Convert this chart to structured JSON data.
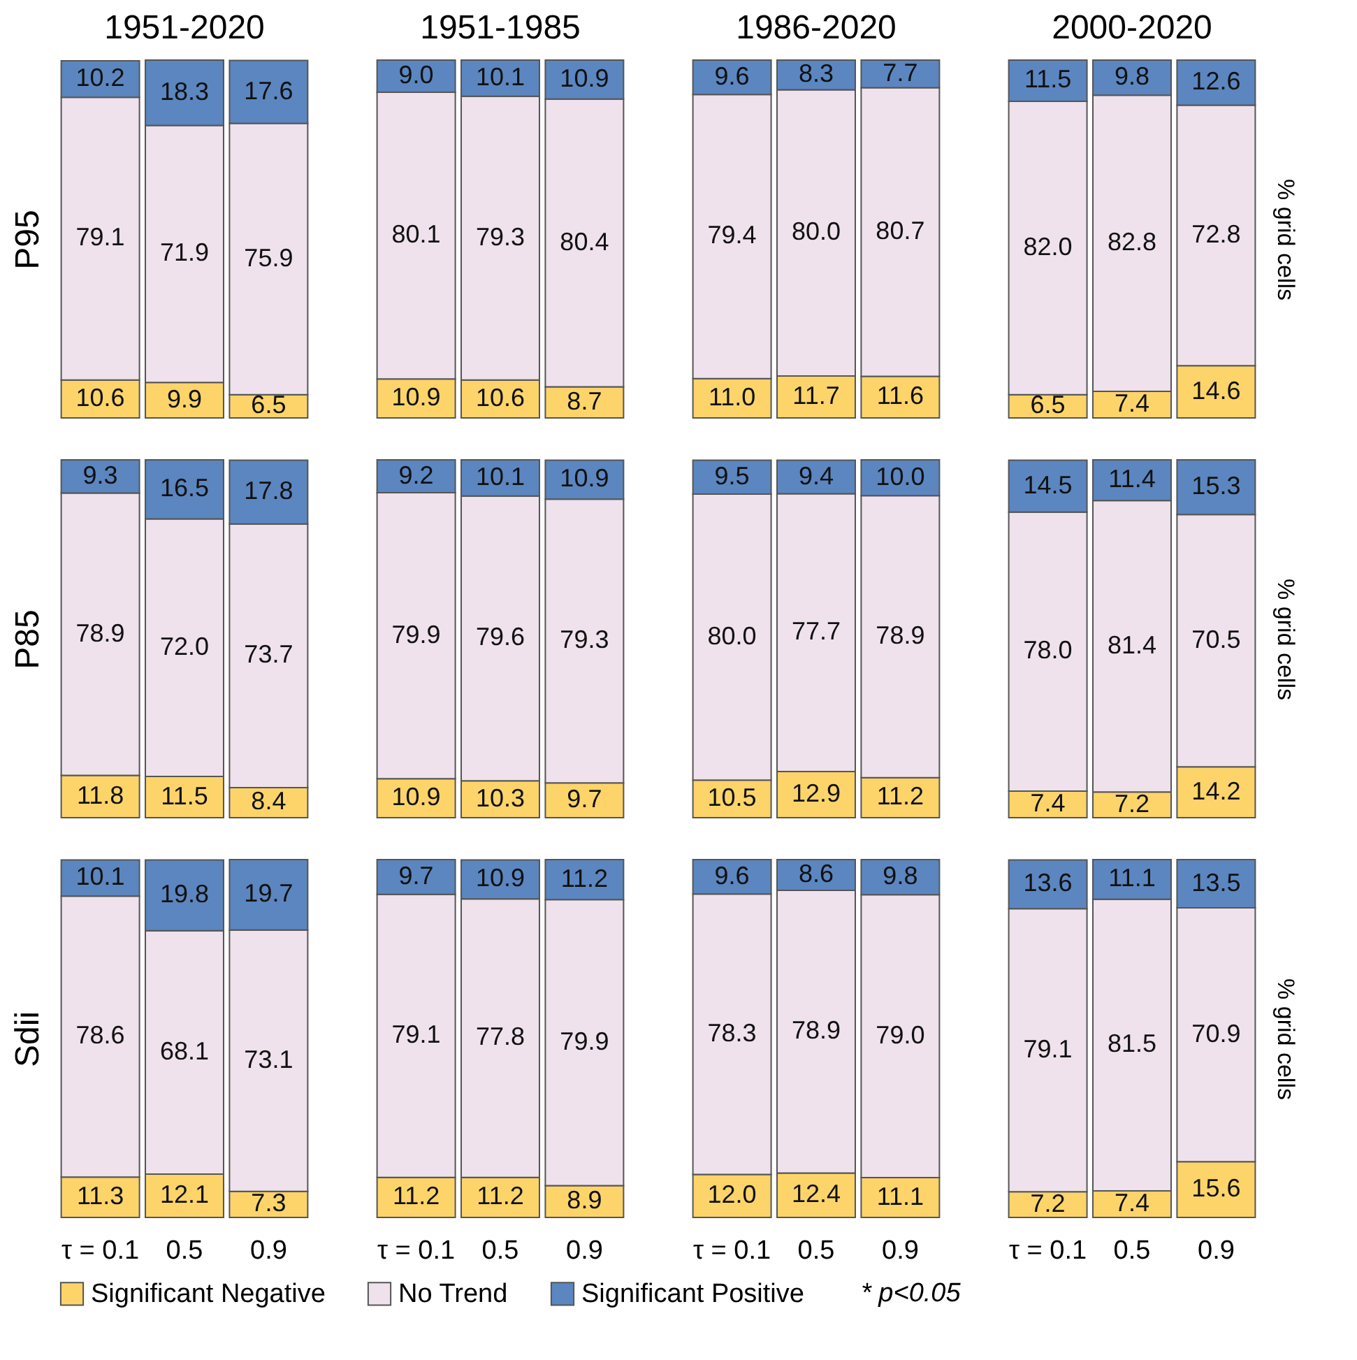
{
  "chart_data": [
    {
      "type": "bar",
      "stacked": true,
      "legend": "bottom",
      "tick_labels": false,
      "title": "1951-2020",
      "ylabel": "P95",
      "categories": [
        "τ = 0.1",
        "0.5",
        "0.9"
      ],
      "series": [
        {
          "name": "Significant Negative",
          "color": "#fcd46a",
          "values": [
            10.6,
            9.9,
            6.5
          ],
          "value_labels": [
            "10.6",
            "9.9",
            "6.5"
          ]
        },
        {
          "name": "No Trend",
          "color": "#efe2ec",
          "values": [
            79.1,
            71.9,
            75.9
          ],
          "value_labels": [
            "79.1",
            "71.9",
            "75.9"
          ]
        },
        {
          "name": "Significant Positive",
          "color": "#5b86c0",
          "values": [
            10.2,
            18.3,
            17.6
          ],
          "value_labels": [
            "10.2",
            "18.3",
            "17.6"
          ]
        }
      ]
    },
    {
      "type": "bar",
      "stacked": true,
      "legend": "bottom",
      "tick_labels": false,
      "title": "1951-1985",
      "categories": [
        "τ = 0.1",
        "0.5",
        "0.9"
      ],
      "series": [
        {
          "name": "Significant Negative",
          "color": "#fcd46a",
          "values": [
            10.9,
            10.6,
            8.7
          ],
          "value_labels": [
            "10.9",
            "10.6",
            "8.7"
          ]
        },
        {
          "name": "No Trend",
          "color": "#efe2ec",
          "values": [
            80.1,
            79.3,
            80.4
          ],
          "value_labels": [
            "80.1",
            "79.3",
            "80.4"
          ]
        },
        {
          "name": "Significant Positive",
          "color": "#5b86c0",
          "values": [
            9.0,
            10.1,
            10.9
          ],
          "value_labels": [
            "9.0",
            "10.1",
            "10.9"
          ]
        }
      ]
    },
    {
      "type": "bar",
      "stacked": true,
      "legend": "bottom",
      "tick_labels": false,
      "title": "1986-2020",
      "categories": [
        "τ = 0.1",
        "0.5",
        "0.9"
      ],
      "series": [
        {
          "name": "Significant Negative",
          "color": "#fcd46a",
          "values": [
            11.0,
            11.7,
            11.6
          ],
          "value_labels": [
            "11.0",
            "11.7",
            "11.6"
          ]
        },
        {
          "name": "No Trend",
          "color": "#efe2ec",
          "values": [
            79.4,
            80.0,
            80.7
          ],
          "value_labels": [
            "79.4",
            "80.0",
            "80.7"
          ]
        },
        {
          "name": "Significant Positive",
          "color": "#5b86c0",
          "values": [
            9.6,
            8.3,
            7.7
          ],
          "value_labels": [
            "9.6",
            "8.3",
            "7.7"
          ]
        }
      ]
    },
    {
      "type": "bar",
      "stacked": true,
      "legend": "bottom",
      "tick_labels": false,
      "title": "2000-2020",
      "y2label": "% grid cells",
      "categories": [
        "τ = 0.1",
        "0.5",
        "0.9"
      ],
      "series": [
        {
          "name": "Significant Negative",
          "color": "#fcd46a",
          "values": [
            6.5,
            7.4,
            14.6
          ],
          "value_labels": [
            "6.5",
            "7.4",
            "14.6"
          ]
        },
        {
          "name": "No Trend",
          "color": "#efe2ec",
          "values": [
            82.0,
            82.8,
            72.8
          ],
          "value_labels": [
            "82.0",
            "82.8",
            "72.8"
          ]
        },
        {
          "name": "Significant Positive",
          "color": "#5b86c0",
          "values": [
            11.5,
            9.8,
            12.6
          ],
          "value_labels": [
            "11.5",
            "9.8",
            "12.6"
          ]
        }
      ]
    },
    {
      "type": "bar",
      "stacked": true,
      "legend": "bottom",
      "tick_labels": false,
      "ylabel": "P85",
      "categories": [
        "τ = 0.1",
        "0.5",
        "0.9"
      ],
      "series": [
        {
          "name": "Significant Negative",
          "color": "#fcd46a",
          "values": [
            11.8,
            11.5,
            8.4
          ],
          "value_labels": [
            "11.8",
            "11.5",
            "8.4"
          ]
        },
        {
          "name": "No Trend",
          "color": "#efe2ec",
          "values": [
            78.9,
            72.0,
            73.7
          ],
          "value_labels": [
            "78.9",
            "72.0",
            "73.7"
          ]
        },
        {
          "name": "Significant Positive",
          "color": "#5b86c0",
          "values": [
            9.3,
            16.5,
            17.8
          ],
          "value_labels": [
            "9.3",
            "16.5",
            "17.8"
          ]
        }
      ]
    },
    {
      "type": "bar",
      "stacked": true,
      "legend": "bottom",
      "tick_labels": false,
      "categories": [
        "τ = 0.1",
        "0.5",
        "0.9"
      ],
      "series": [
        {
          "name": "Significant Negative",
          "color": "#fcd46a",
          "values": [
            10.9,
            10.3,
            9.7
          ],
          "value_labels": [
            "10.9",
            "10.3",
            "9.7"
          ]
        },
        {
          "name": "No Trend",
          "color": "#efe2ec",
          "values": [
            79.9,
            79.6,
            79.3
          ],
          "value_labels": [
            "79.9",
            "79.6",
            "79.3"
          ]
        },
        {
          "name": "Significant Positive",
          "color": "#5b86c0",
          "values": [
            9.2,
            10.1,
            10.9
          ],
          "value_labels": [
            "9.2",
            "10.1",
            "10.9"
          ]
        }
      ]
    },
    {
      "type": "bar",
      "stacked": true,
      "legend": "bottom",
      "tick_labels": false,
      "categories": [
        "τ = 0.1",
        "0.5",
        "0.9"
      ],
      "series": [
        {
          "name": "Significant Negative",
          "color": "#fcd46a",
          "values": [
            10.5,
            12.9,
            11.2
          ],
          "value_labels": [
            "10.5",
            "12.9",
            "11.2"
          ]
        },
        {
          "name": "No Trend",
          "color": "#efe2ec",
          "values": [
            80.0,
            77.7,
            78.9
          ],
          "value_labels": [
            "80.0",
            "77.7",
            "78.9"
          ]
        },
        {
          "name": "Significant Positive",
          "color": "#5b86c0",
          "values": [
            9.5,
            9.4,
            10.0
          ],
          "value_labels": [
            "9.5",
            "9.4",
            "10.0"
          ]
        }
      ]
    },
    {
      "type": "bar",
      "stacked": true,
      "legend": "bottom",
      "tick_labels": false,
      "y2label": "% grid cells",
      "categories": [
        "τ = 0.1",
        "0.5",
        "0.9"
      ],
      "series": [
        {
          "name": "Significant Negative",
          "color": "#fcd46a",
          "values": [
            7.4,
            7.2,
            14.2
          ],
          "value_labels": [
            "7.4",
            "7.2",
            "14.2"
          ]
        },
        {
          "name": "No Trend",
          "color": "#efe2ec",
          "values": [
            78.0,
            81.4,
            70.5
          ],
          "value_labels": [
            "78.0",
            "81.4",
            "70.5"
          ]
        },
        {
          "name": "Significant Positive",
          "color": "#5b86c0",
          "values": [
            14.5,
            11.4,
            15.3
          ],
          "value_labels": [
            "14.5",
            "11.4",
            "15.3"
          ]
        }
      ]
    },
    {
      "type": "bar",
      "stacked": true,
      "legend": "bottom",
      "tick_labels": "x",
      "ylabel": "Sdii",
      "categories": [
        "τ = 0.1",
        "0.5",
        "0.9"
      ],
      "series": [
        {
          "name": "Significant Negative",
          "color": "#fcd46a",
          "values": [
            11.3,
            12.1,
            7.3
          ],
          "value_labels": [
            "11.3",
            "12.1",
            "7.3"
          ]
        },
        {
          "name": "No Trend",
          "color": "#efe2ec",
          "values": [
            78.6,
            68.1,
            73.1
          ],
          "value_labels": [
            "78.6",
            "68.1",
            "73.1"
          ]
        },
        {
          "name": "Significant Positive",
          "color": "#5b86c0",
          "values": [
            10.1,
            19.8,
            19.7
          ],
          "value_labels": [
            "10.1",
            "19.8",
            "19.7"
          ]
        }
      ]
    },
    {
      "type": "bar",
      "stacked": true,
      "legend": "bottom",
      "tick_labels": "x",
      "categories": [
        "τ = 0.1",
        "0.5",
        "0.9"
      ],
      "series": [
        {
          "name": "Significant Negative",
          "color": "#fcd46a",
          "values": [
            11.2,
            11.2,
            8.9
          ],
          "value_labels": [
            "11.2",
            "11.2",
            "8.9"
          ]
        },
        {
          "name": "No Trend",
          "color": "#efe2ec",
          "values": [
            79.1,
            77.8,
            79.9
          ],
          "value_labels": [
            "79.1",
            "77.8",
            "79.9"
          ]
        },
        {
          "name": "Significant Positive",
          "color": "#5b86c0",
          "values": [
            9.7,
            10.9,
            11.2
          ],
          "value_labels": [
            "9.7",
            "10.9",
            "11.2"
          ]
        }
      ]
    },
    {
      "type": "bar",
      "stacked": true,
      "legend": "bottom",
      "tick_labels": "x",
      "categories": [
        "τ = 0.1",
        "0.5",
        "0.9"
      ],
      "series": [
        {
          "name": "Significant Negative",
          "color": "#fcd46a",
          "values": [
            12.0,
            12.4,
            11.1
          ],
          "value_labels": [
            "12.0",
            "12.4",
            "11.1"
          ]
        },
        {
          "name": "No Trend",
          "color": "#efe2ec",
          "values": [
            78.3,
            78.9,
            79.0
          ],
          "value_labels": [
            "78.3",
            "78.9",
            "79.0"
          ]
        },
        {
          "name": "Significant Positive",
          "color": "#5b86c0",
          "values": [
            9.6,
            8.6,
            9.8
          ],
          "value_labels": [
            "9.6",
            "8.6",
            "9.8"
          ]
        }
      ]
    },
    {
      "type": "bar",
      "stacked": true,
      "legend": "bottom",
      "tick_labels": "x",
      "y2label": "% grid cells",
      "annotations": [
        "* p<0.05"
      ],
      "categories": [
        "τ = 0.1",
        "0.5",
        "0.9"
      ],
      "series": [
        {
          "name": "Significant Negative",
          "color": "#fcd46a",
          "values": [
            7.2,
            7.4,
            15.6
          ],
          "value_labels": [
            "7.2",
            "7.4",
            "15.6"
          ]
        },
        {
          "name": "No Trend",
          "color": "#efe2ec",
          "values": [
            79.1,
            81.5,
            70.9
          ],
          "value_labels": [
            "79.1",
            "81.5",
            "70.9"
          ]
        },
        {
          "name": "Significant Positive",
          "color": "#5b86c0",
          "values": [
            13.6,
            11.1,
            13.5
          ],
          "value_labels": [
            "13.6",
            "11.1",
            "13.5"
          ]
        }
      ]
    }
  ]
}
